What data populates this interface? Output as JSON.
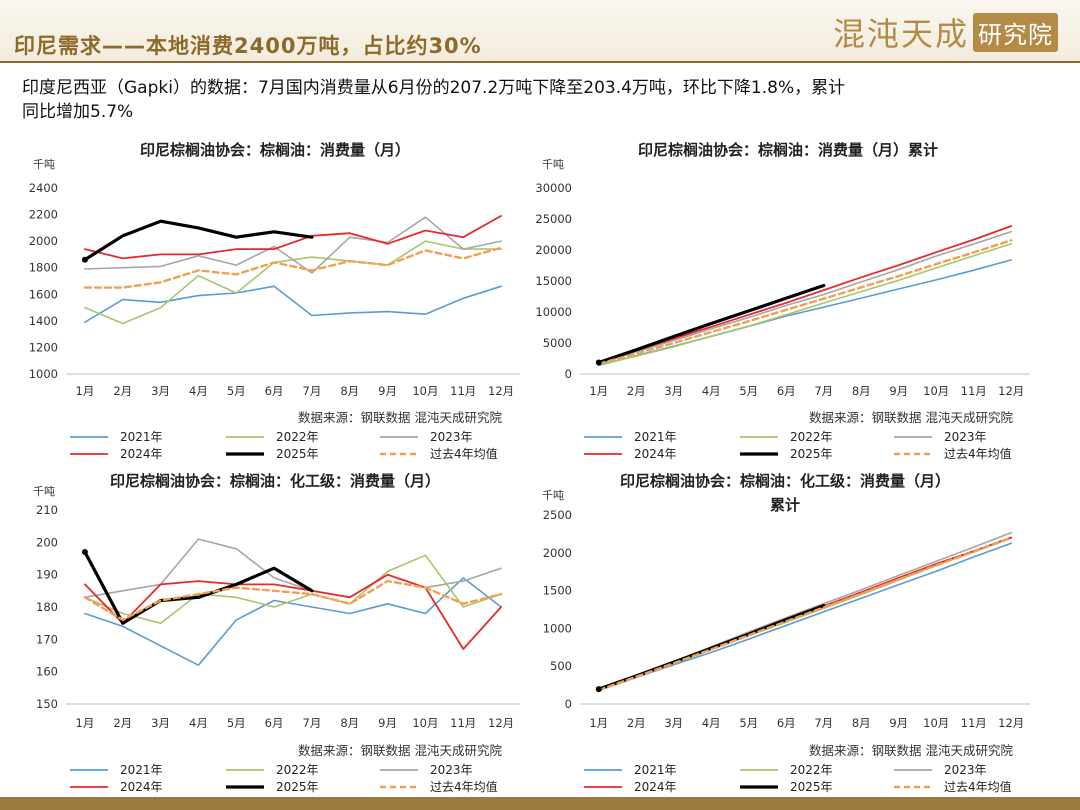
{
  "header": {
    "title": "印尼需求——本地消费2400万吨，占比约30%",
    "logo_main": "混沌天成",
    "logo_sub": "研究院"
  },
  "summary": {
    "line1": "印度尼西亚（Gapki）的数据：7月国内消费量从6月份的207.2万吨下降至203.4万吨，环比下降1.8%，累计",
    "line2": "同比增加5.7%"
  },
  "colors": {
    "y2021": "#5b9bd5",
    "y2022": "#a9c46b",
    "y2023": "#a6a6a6",
    "y2024": "#e8292c",
    "y2025": "#000000",
    "avg": "#f0a050",
    "accent": "#8c6a2c"
  },
  "chart_data": [
    {
      "type": "line",
      "title": "印尼棕榈油协会：棕榈油：消费量（月）",
      "unit": "千吨",
      "categories": [
        "1月",
        "2月",
        "3月",
        "4月",
        "5月",
        "6月",
        "7月",
        "8月",
        "9月",
        "10月",
        "11月",
        "12月"
      ],
      "ylim": [
        1000,
        2400
      ],
      "yticks": [
        1000,
        1200,
        1400,
        1600,
        1800,
        2000,
        2200,
        2400
      ],
      "source": "数据来源：钢联数据  混沌天成研究院",
      "series": [
        {
          "name": "2021年",
          "values": [
            1390,
            1560,
            1540,
            1590,
            1610,
            1660,
            1440,
            1460,
            1470,
            1450,
            1570,
            1660
          ]
        },
        {
          "name": "2022年",
          "values": [
            1500,
            1380,
            1500,
            1740,
            1610,
            1840,
            1880,
            1850,
            1820,
            2000,
            1940,
            1940
          ]
        },
        {
          "name": "2023年",
          "values": [
            1790,
            1800,
            1810,
            1890,
            1820,
            1960,
            1760,
            2030,
            1990,
            2180,
            1940,
            2000
          ]
        },
        {
          "name": "2024年",
          "values": [
            1940,
            1870,
            1900,
            1900,
            1940,
            1940,
            2040,
            2060,
            1980,
            2080,
            2030,
            2190
          ]
        },
        {
          "name": "2025年",
          "values": [
            1860,
            2040,
            2150,
            2100,
            2030,
            2070,
            2030,
            null,
            null,
            null,
            null,
            null
          ]
        },
        {
          "name": "过去4年均值",
          "values": [
            1650,
            1650,
            1690,
            1780,
            1750,
            1840,
            1780,
            1850,
            1820,
            1930,
            1870,
            1950
          ]
        }
      ]
    },
    {
      "type": "line",
      "title": "印尼棕榈油协会：棕榈油：消费量（月）累计",
      "unit": "千吨",
      "categories": [
        "1月",
        "2月",
        "3月",
        "4月",
        "5月",
        "6月",
        "7月",
        "8月",
        "9月",
        "10月",
        "11月",
        "12月"
      ],
      "ylim": [
        0,
        30000
      ],
      "yticks": [
        0,
        5000,
        10000,
        15000,
        20000,
        25000,
        30000
      ],
      "source": "数据来源：钢联数据  混沌天成研究院",
      "series": [
        {
          "name": "2021年",
          "values": [
            1390,
            2950,
            4490,
            6080,
            7690,
            9350,
            10790,
            12250,
            13720,
            15170,
            16740,
            18400
          ]
        },
        {
          "name": "2022年",
          "values": [
            1500,
            2880,
            4380,
            6120,
            7730,
            9570,
            11450,
            13300,
            15120,
            17120,
            19060,
            21000
          ]
        },
        {
          "name": "2023年",
          "values": [
            1790,
            3590,
            5400,
            7290,
            9110,
            11070,
            12830,
            14860,
            16850,
            19030,
            20970,
            22970
          ]
        },
        {
          "name": "2024年",
          "values": [
            1940,
            3810,
            5710,
            7610,
            9550,
            11490,
            13530,
            15590,
            17570,
            19650,
            21680,
            23870
          ]
        },
        {
          "name": "2025年",
          "values": [
            1860,
            3900,
            6050,
            8150,
            10180,
            12250,
            14280,
            null,
            null,
            null,
            null,
            null
          ]
        },
        {
          "name": "过去4年均值",
          "values": [
            1650,
            3300,
            4990,
            6770,
            8520,
            10360,
            12140,
            13990,
            15810,
            17740,
            19610,
            21560
          ]
        }
      ]
    },
    {
      "type": "line",
      "title": "印尼棕榈油协会：棕榈油：化工级：消费量（月）",
      "unit": "千吨",
      "categories": [
        "1月",
        "2月",
        "3月",
        "4月",
        "5月",
        "6月",
        "7月",
        "8月",
        "9月",
        "10月",
        "11月",
        "12月"
      ],
      "ylim": [
        150,
        210
      ],
      "yticks": [
        150,
        160,
        170,
        180,
        190,
        200,
        210
      ],
      "source": "数据来源：钢联数据  混沌天成研究院",
      "series": [
        {
          "name": "2021年",
          "values": [
            178,
            174,
            168,
            162,
            176,
            182,
            180,
            178,
            181,
            178,
            189,
            180
          ]
        },
        {
          "name": "2022年",
          "values": [
            183,
            178,
            175,
            184,
            183,
            180,
            184,
            181,
            191,
            196,
            180,
            184
          ]
        },
        {
          "name": "2023年",
          "values": [
            183,
            185,
            187,
            201,
            198,
            189,
            185,
            183,
            190,
            186,
            188,
            192
          ]
        },
        {
          "name": "2024年",
          "values": [
            187,
            175,
            187,
            188,
            187,
            187,
            185,
            183,
            190,
            186,
            167,
            180
          ]
        },
        {
          "name": "2025年",
          "values": [
            197,
            175,
            182,
            183,
            187,
            192,
            185,
            null,
            null,
            null,
            null,
            null
          ]
        },
        {
          "name": "过去4年均值",
          "values": [
            183,
            176,
            182,
            184,
            186,
            185,
            184,
            181,
            188,
            186,
            181,
            184
          ]
        }
      ]
    },
    {
      "type": "line",
      "title": "印尼棕榈油协会：棕榈油：化工级：消费量（月）",
      "title_line2": "累计",
      "unit": "千吨",
      "categories": [
        "1月",
        "2月",
        "3月",
        "4月",
        "5月",
        "6月",
        "7月",
        "8月",
        "9月",
        "10月",
        "11月",
        "12月"
      ],
      "ylim": [
        0,
        2500
      ],
      "yticks": [
        0,
        500,
        1000,
        1500,
        2000,
        2500
      ],
      "source": "数据来源：钢联数据  混沌天成研究院",
      "series": [
        {
          "name": "2021年",
          "values": [
            178,
            352,
            520,
            682,
            858,
            1040,
            1220,
            1398,
            1579,
            1757,
            1946,
            2126
          ]
        },
        {
          "name": "2022年",
          "values": [
            183,
            361,
            536,
            720,
            903,
            1083,
            1267,
            1448,
            1639,
            1835,
            2015,
            2199
          ]
        },
        {
          "name": "2023年",
          "values": [
            183,
            368,
            555,
            756,
            954,
            1143,
            1328,
            1511,
            1701,
            1887,
            2075,
            2267
          ]
        },
        {
          "name": "2024年",
          "values": [
            187,
            362,
            549,
            737,
            924,
            1111,
            1296,
            1479,
            1669,
            1855,
            2022,
            2202
          ]
        },
        {
          "name": "2025年",
          "values": [
            197,
            372,
            554,
            737,
            924,
            1116,
            1301,
            null,
            null,
            null,
            null,
            null
          ]
        },
        {
          "name": "过去4年均值",
          "values": [
            183,
            361,
            540,
            724,
            910,
            1094,
            1278,
            1459,
            1647,
            1834,
            2015,
            2199
          ]
        }
      ]
    }
  ]
}
